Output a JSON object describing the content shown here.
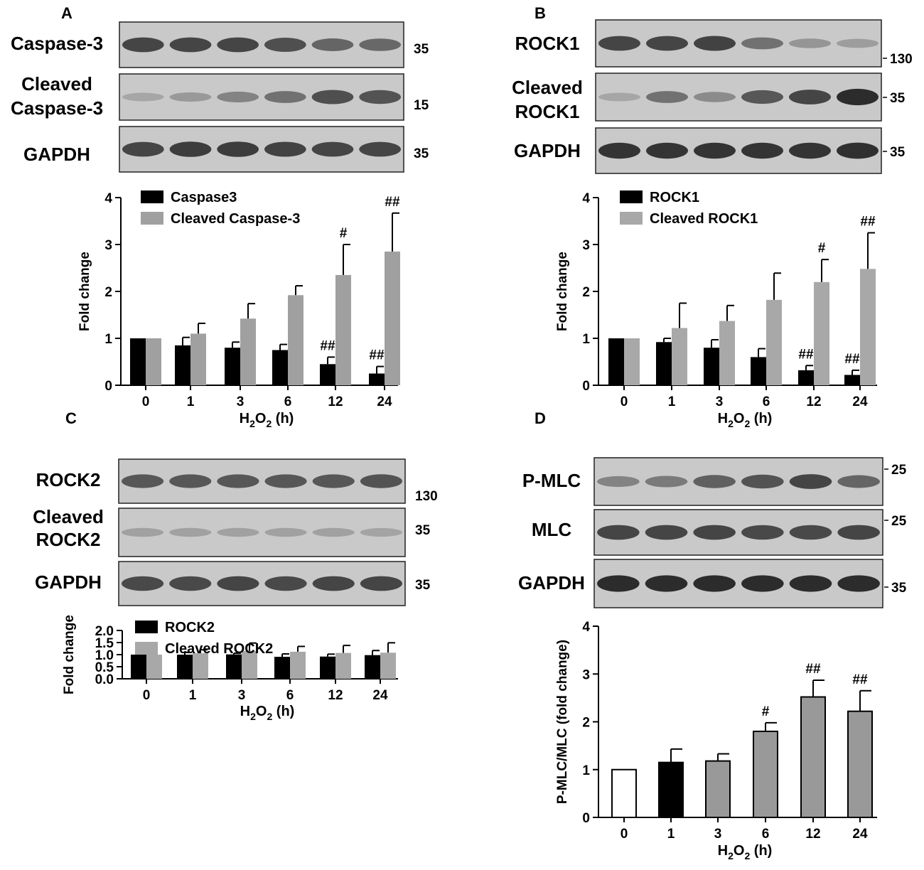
{
  "panels": [
    {
      "letter": "A",
      "blots": [
        {
          "label_lines": [
            "Caspase-3"
          ],
          "marker": "35",
          "intensity": [
            0.8,
            0.8,
            0.8,
            0.75,
            0.62,
            0.6
          ]
        },
        {
          "label_lines": [
            "Cleaved",
            "Caspase-3"
          ],
          "marker": "15",
          "intensity": [
            0.25,
            0.32,
            0.45,
            0.55,
            0.75,
            0.72
          ]
        },
        {
          "label_lines": [
            "GAPDH"
          ],
          "marker": "35",
          "intensity": [
            0.8,
            0.85,
            0.85,
            0.82,
            0.8,
            0.8
          ]
        }
      ]
    },
    {
      "letter": "B",
      "blots": [
        {
          "label_lines": [
            "ROCK1"
          ],
          "marker": "130",
          "intensity": [
            0.8,
            0.8,
            0.82,
            0.55,
            0.35,
            0.3
          ]
        },
        {
          "label_lines": [
            "Cleaved",
            "ROCK1"
          ],
          "marker": "35",
          "intensity": [
            0.25,
            0.55,
            0.4,
            0.7,
            0.8,
            0.95
          ]
        },
        {
          "label_lines": [
            "GAPDH"
          ],
          "marker": "35",
          "intensity": [
            0.9,
            0.9,
            0.9,
            0.9,
            0.9,
            0.92
          ]
        }
      ]
    },
    {
      "letter": "C",
      "blots": [
        {
          "label_lines": [
            "ROCK2"
          ],
          "marker": "130",
          "intensity": [
            0.7,
            0.7,
            0.7,
            0.7,
            0.7,
            0.72
          ]
        },
        {
          "label_lines": [
            "Cleaved",
            "ROCK2"
          ],
          "marker": "35",
          "intensity": [
            0.28,
            0.28,
            0.28,
            0.28,
            0.28,
            0.26
          ]
        },
        {
          "label_lines": [
            "GAPDH"
          ],
          "marker": "35",
          "intensity": [
            0.78,
            0.78,
            0.8,
            0.78,
            0.8,
            0.8
          ]
        }
      ]
    },
    {
      "letter": "D",
      "blots": [
        {
          "label_lines": [
            "P-MLC"
          ],
          "marker": "25",
          "intensity": [
            0.45,
            0.5,
            0.65,
            0.72,
            0.8,
            0.62
          ]
        },
        {
          "label_lines": [
            "MLC"
          ],
          "marker": "25",
          "intensity": [
            0.8,
            0.8,
            0.8,
            0.78,
            0.78,
            0.8
          ]
        },
        {
          "label_lines": [
            "GAPDH"
          ],
          "marker": "35",
          "intensity": [
            0.95,
            0.95,
            0.95,
            0.95,
            0.95,
            0.95
          ]
        }
      ]
    }
  ],
  "chart_data": [
    {
      "panel": "A",
      "type": "bar",
      "categories": [
        "0",
        "1",
        "3",
        "6",
        "12",
        "24"
      ],
      "series": [
        {
          "name": "Caspase3",
          "color": "#000000",
          "values": [
            1.0,
            0.85,
            0.8,
            0.75,
            0.45,
            0.25
          ],
          "errors": [
            0,
            0.17,
            0.12,
            0.12,
            0.15,
            0.15
          ]
        },
        {
          "name": "Cleaved Caspase-3",
          "color": "#a0a0a0",
          "values": [
            1.0,
            1.1,
            1.42,
            1.92,
            2.35,
            2.85
          ],
          "errors": [
            0,
            0.22,
            0.32,
            0.2,
            0.65,
            0.82
          ]
        }
      ],
      "annotations": [
        {
          "series": 0,
          "index": 4,
          "text": "##"
        },
        {
          "series": 0,
          "index": 5,
          "text": "##"
        },
        {
          "series": 1,
          "index": 4,
          "text": "#"
        },
        {
          "series": 1,
          "index": 5,
          "text": "##"
        }
      ],
      "ylabel": "Fold change",
      "xlabel_parts": [
        "H",
        "2",
        "O",
        "2",
        " (h)"
      ],
      "ylim": [
        0,
        4
      ],
      "yticks": [
        "0",
        "1",
        "2",
        "3",
        "4"
      ],
      "legend": "top-left"
    },
    {
      "panel": "B",
      "type": "bar",
      "categories": [
        "0",
        "1",
        "3",
        "6",
        "12",
        "24"
      ],
      "series": [
        {
          "name": "ROCK1",
          "color": "#000000",
          "values": [
            1.0,
            0.92,
            0.8,
            0.6,
            0.32,
            0.22
          ],
          "errors": [
            0,
            0.08,
            0.17,
            0.18,
            0.1,
            0.1
          ]
        },
        {
          "name": "Cleaved ROCK1",
          "color": "#a8a8a8",
          "values": [
            1.0,
            1.22,
            1.37,
            1.82,
            2.2,
            2.48
          ],
          "errors": [
            0,
            0.53,
            0.33,
            0.57,
            0.48,
            0.77
          ]
        }
      ],
      "annotations": [
        {
          "series": 0,
          "index": 4,
          "text": "##"
        },
        {
          "series": 0,
          "index": 5,
          "text": "##"
        },
        {
          "series": 1,
          "index": 4,
          "text": "#"
        },
        {
          "series": 1,
          "index": 5,
          "text": "##"
        }
      ],
      "ylabel": "Fold change",
      "xlabel_parts": [
        "H",
        "2",
        "O",
        "2",
        " (h)"
      ],
      "ylim": [
        0,
        4
      ],
      "yticks": [
        "0",
        "1",
        "2",
        "3",
        "4"
      ],
      "legend": "top-left"
    },
    {
      "panel": "C",
      "type": "bar",
      "categories": [
        "0",
        "1",
        "3",
        "6",
        "12",
        "24"
      ],
      "series": [
        {
          "name": "ROCK2",
          "color": "#000000",
          "values": [
            1.0,
            1.0,
            1.01,
            0.91,
            0.92,
            0.98
          ],
          "errors": [
            0,
            0.09,
            0.05,
            0.12,
            0.1,
            0.19
          ]
        },
        {
          "name": "Cleaved ROCK2",
          "color": "#a8a8a8",
          "values": [
            1.0,
            1.06,
            1.15,
            1.12,
            1.07,
            1.08
          ],
          "errors": [
            0,
            0.14,
            0.33,
            0.22,
            0.31,
            0.41
          ]
        }
      ],
      "annotations": [],
      "ylabel": "Fold change",
      "xlabel_parts": [
        "H",
        "2",
        "O",
        "2",
        " (h)"
      ],
      "ylim": [
        0,
        2
      ],
      "yticks": [
        "0.0",
        "0.5",
        "1.0",
        "1.5",
        "2.0"
      ],
      "legend": "top-left"
    },
    {
      "panel": "D",
      "type": "bar",
      "categories": [
        "0",
        "1",
        "3",
        "6",
        "12",
        "24"
      ],
      "series": [
        {
          "name": "",
          "colors": [
            "#ffffff",
            "#000000",
            "#999999",
            "#999999",
            "#999999",
            "#999999"
          ],
          "values": [
            1.0,
            1.15,
            1.18,
            1.8,
            2.52,
            2.22
          ],
          "errors": [
            0,
            0.28,
            0.15,
            0.18,
            0.35,
            0.43
          ]
        }
      ],
      "annotations": [
        {
          "series": 0,
          "index": 3,
          "text": "#"
        },
        {
          "series": 0,
          "index": 4,
          "text": "##"
        },
        {
          "series": 0,
          "index": 5,
          "text": "##"
        }
      ],
      "ylabel": "P-MLC/MLC (fold change)",
      "xlabel_parts": [
        "H",
        "2",
        "O",
        "2",
        " (h)"
      ],
      "ylim": [
        0,
        4
      ],
      "yticks": [
        "0",
        "1",
        "2",
        "3",
        "4"
      ],
      "legend": "none"
    }
  ]
}
